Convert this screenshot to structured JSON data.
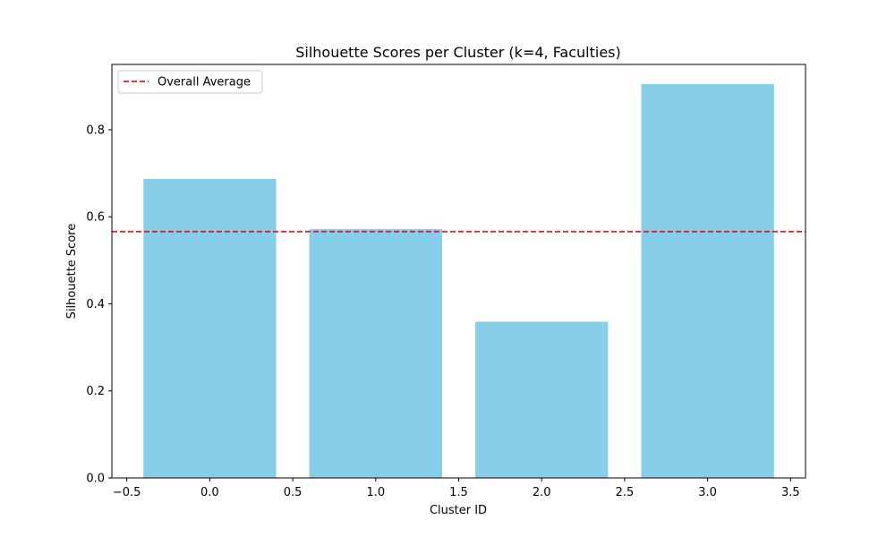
{
  "chart_data": {
    "type": "bar",
    "title": "Silhouette Scores per Cluster (k=4, Faculties)",
    "xlabel": "Cluster ID",
    "ylabel": "Silhouette Score",
    "categories": [
      0,
      1,
      2,
      3
    ],
    "bar_width": 0.8,
    "values": [
      0.687,
      0.572,
      0.359,
      0.905
    ],
    "bar_color": "#87CEEB",
    "average_line": {
      "label": "Overall Average",
      "value": 0.566,
      "color": "#e41a1c",
      "style": "dashed"
    },
    "xlim": [
      -0.59,
      3.59
    ],
    "ylim": [
      0,
      0.95
    ],
    "x_ticks": [
      -0.5,
      0.0,
      0.5,
      1.0,
      1.5,
      2.0,
      2.5,
      3.0,
      3.5
    ],
    "x_tick_labels": [
      "−0.5",
      "0.0",
      "0.5",
      "1.0",
      "1.5",
      "2.0",
      "2.5",
      "3.0",
      "3.5"
    ],
    "y_ticks": [
      0.0,
      0.2,
      0.4,
      0.6,
      0.8
    ],
    "y_tick_labels": [
      "0.0",
      "0.2",
      "0.4",
      "0.6",
      "0.8"
    ],
    "grid": false,
    "legend_position": "upper-left"
  }
}
